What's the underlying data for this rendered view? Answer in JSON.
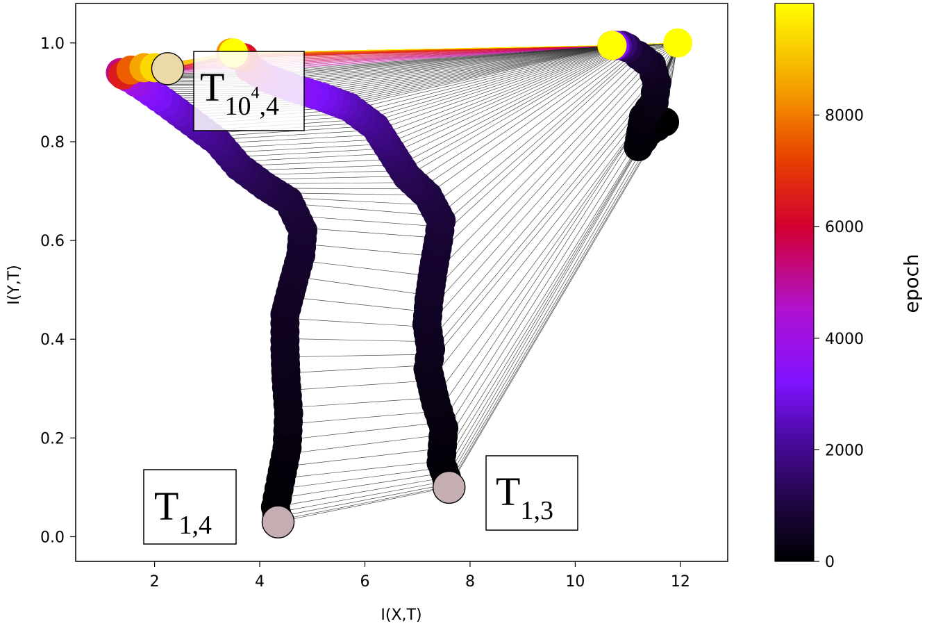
{
  "chart_data": {
    "type": "scatter",
    "xlabel": "I(X,T)",
    "ylabel": "I(Y,T)",
    "xlim": [
      0.5,
      12.9
    ],
    "ylim": [
      -0.05,
      1.08
    ],
    "xticks": [
      "2",
      "4",
      "6",
      "8",
      "10",
      "12"
    ],
    "yticks": [
      "0.0",
      "0.2",
      "0.4",
      "0.6",
      "0.8",
      "1.0"
    ],
    "grid": false,
    "colorbar": {
      "label": "epoch",
      "range": [
        0,
        10000
      ],
      "ticks": [
        "0",
        "2000",
        "4000",
        "6000",
        "8000"
      ],
      "colormap": "gnuplot2"
    },
    "series": [
      {
        "layer": 4,
        "points": [
          {
            "x": 4.35,
            "y": 0.03,
            "epoch": 0
          },
          {
            "x": 4.3,
            "y": 0.06,
            "epoch": 50
          },
          {
            "x": 4.4,
            "y": 0.115,
            "epoch": 120
          },
          {
            "x": 4.52,
            "y": 0.18,
            "epoch": 200
          },
          {
            "x": 4.55,
            "y": 0.25,
            "epoch": 280
          },
          {
            "x": 4.5,
            "y": 0.32,
            "epoch": 360
          },
          {
            "x": 4.48,
            "y": 0.38,
            "epoch": 440
          },
          {
            "x": 4.48,
            "y": 0.45,
            "epoch": 520
          },
          {
            "x": 4.65,
            "y": 0.52,
            "epoch": 600
          },
          {
            "x": 4.78,
            "y": 0.57,
            "epoch": 680
          },
          {
            "x": 4.82,
            "y": 0.62,
            "epoch": 760
          },
          {
            "x": 4.55,
            "y": 0.68,
            "epoch": 900
          },
          {
            "x": 4.1,
            "y": 0.71,
            "epoch": 1100
          },
          {
            "x": 3.6,
            "y": 0.75,
            "epoch": 1400
          },
          {
            "x": 3.2,
            "y": 0.8,
            "epoch": 1800
          },
          {
            "x": 2.7,
            "y": 0.84,
            "epoch": 2300
          },
          {
            "x": 2.2,
            "y": 0.88,
            "epoch": 2900
          },
          {
            "x": 1.8,
            "y": 0.91,
            "epoch": 3500
          },
          {
            "x": 1.5,
            "y": 0.93,
            "epoch": 4200
          },
          {
            "x": 1.35,
            "y": 0.94,
            "epoch": 5200
          },
          {
            "x": 1.4,
            "y": 0.935,
            "epoch": 6500
          },
          {
            "x": 1.55,
            "y": 0.945,
            "epoch": 7600
          },
          {
            "x": 1.8,
            "y": 0.95,
            "epoch": 8600
          },
          {
            "x": 2.0,
            "y": 0.95,
            "epoch": 9400
          },
          {
            "x": 2.25,
            "y": 0.948,
            "epoch": 10000
          }
        ]
      },
      {
        "layer": 3,
        "points": [
          {
            "x": 7.6,
            "y": 0.1,
            "epoch": 0
          },
          {
            "x": 7.55,
            "y": 0.12,
            "epoch": 50
          },
          {
            "x": 7.45,
            "y": 0.15,
            "epoch": 120
          },
          {
            "x": 7.5,
            "y": 0.22,
            "epoch": 200
          },
          {
            "x": 7.35,
            "y": 0.27,
            "epoch": 280
          },
          {
            "x": 7.2,
            "y": 0.34,
            "epoch": 360
          },
          {
            "x": 7.25,
            "y": 0.38,
            "epoch": 440
          },
          {
            "x": 7.18,
            "y": 0.43,
            "epoch": 520
          },
          {
            "x": 7.22,
            "y": 0.48,
            "epoch": 600
          },
          {
            "x": 7.3,
            "y": 0.54,
            "epoch": 680
          },
          {
            "x": 7.4,
            "y": 0.6,
            "epoch": 760
          },
          {
            "x": 7.45,
            "y": 0.64,
            "epoch": 860
          },
          {
            "x": 7.2,
            "y": 0.69,
            "epoch": 1000
          },
          {
            "x": 6.8,
            "y": 0.73,
            "epoch": 1200
          },
          {
            "x": 6.5,
            "y": 0.78,
            "epoch": 1500
          },
          {
            "x": 6.2,
            "y": 0.83,
            "epoch": 1900
          },
          {
            "x": 5.7,
            "y": 0.87,
            "epoch": 2400
          },
          {
            "x": 5.2,
            "y": 0.89,
            "epoch": 3000
          },
          {
            "x": 4.6,
            "y": 0.91,
            "epoch": 3600
          },
          {
            "x": 4.1,
            "y": 0.93,
            "epoch": 4300
          },
          {
            "x": 3.8,
            "y": 0.95,
            "epoch": 5200
          },
          {
            "x": 3.7,
            "y": 0.97,
            "epoch": 6300
          },
          {
            "x": 3.55,
            "y": 0.975,
            "epoch": 7300
          },
          {
            "x": 3.45,
            "y": 0.98,
            "epoch": 8300
          },
          {
            "x": 3.5,
            "y": 0.98,
            "epoch": 10000
          }
        ]
      },
      {
        "layer": 2,
        "points": [
          {
            "x": 11.7,
            "y": 0.84,
            "epoch": 0
          },
          {
            "x": 11.4,
            "y": 0.82,
            "epoch": 50
          },
          {
            "x": 11.2,
            "y": 0.79,
            "epoch": 120
          },
          {
            "x": 11.3,
            "y": 0.85,
            "epoch": 200
          },
          {
            "x": 11.5,
            "y": 0.88,
            "epoch": 300
          },
          {
            "x": 11.55,
            "y": 0.92,
            "epoch": 420
          },
          {
            "x": 11.45,
            "y": 0.955,
            "epoch": 560
          },
          {
            "x": 11.2,
            "y": 0.975,
            "epoch": 760
          },
          {
            "x": 11.0,
            "y": 0.99,
            "epoch": 1100
          },
          {
            "x": 10.9,
            "y": 0.995,
            "epoch": 1600
          },
          {
            "x": 10.8,
            "y": 0.995,
            "epoch": 2300
          },
          {
            "x": 10.75,
            "y": 0.995,
            "epoch": 3200
          },
          {
            "x": 10.7,
            "y": 0.995,
            "epoch": 4300
          },
          {
            "x": 10.7,
            "y": 0.995,
            "epoch": 5600
          },
          {
            "x": 10.7,
            "y": 0.995,
            "epoch": 7000
          },
          {
            "x": 10.7,
            "y": 0.995,
            "epoch": 8500
          },
          {
            "x": 10.7,
            "y": 0.995,
            "epoch": 10000
          }
        ]
      },
      {
        "layer": 1,
        "points": [
          {
            "x": 11.95,
            "y": 1.0,
            "epoch": 10000
          }
        ]
      }
    ],
    "annotations": [
      {
        "label": "T",
        "sub": "1,4",
        "sup": "",
        "x": 4.35,
        "y": 0.03
      },
      {
        "label": "T",
        "sub": "1,3",
        "sup": "",
        "x": 7.6,
        "y": 0.1
      },
      {
        "label": "T",
        "sub": "10",
        "sup": "4",
        "sub2": ",4",
        "x": 2.25,
        "y": 0.948
      }
    ]
  }
}
